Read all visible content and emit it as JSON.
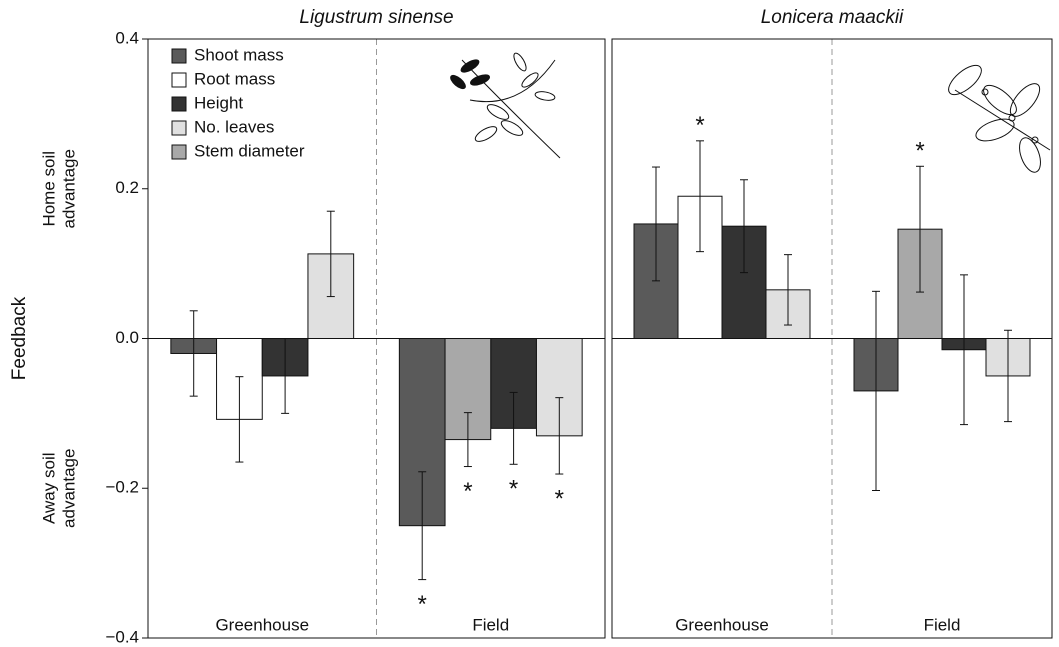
{
  "chart_data": [
    {
      "type": "bar",
      "title": "Ligustrum sinense",
      "ylabel": "Feedback",
      "y_annotations": [
        [
          "Home soil",
          "advantage"
        ],
        [
          "Away soil",
          "advantage"
        ]
      ],
      "categories": [
        "Greenhouse",
        "Field"
      ],
      "ylim": [
        -0.4,
        0.4
      ],
      "yticks": [
        {
          "value": -0.4,
          "label": "−0.4"
        },
        {
          "value": -0.2,
          "label": "−0.2"
        },
        {
          "value": 0,
          "label": "0.0"
        },
        0.2,
        0.4
      ],
      "legend": "upper left",
      "series": [
        {
          "name": "Shoot mass",
          "color": "#5a5a5a",
          "values": [
            -0.02,
            -0.25
          ],
          "errors": [
            0.057,
            0.072
          ],
          "stars": [
            null,
            "*"
          ]
        },
        {
          "name": "Root mass",
          "color": "#ffffff",
          "values": [
            -0.108,
            null
          ],
          "errors": [
            0.057,
            null
          ],
          "stars": [
            null,
            null
          ]
        },
        {
          "name": "Height",
          "color": "#333333",
          "values": [
            -0.05,
            -0.12
          ],
          "errors": [
            0.05,
            0.048
          ],
          "stars": [
            null,
            "*"
          ]
        },
        {
          "name": "No. leaves",
          "color": "#e0e0e0",
          "values": [
            0.113,
            -0.13
          ],
          "errors": [
            0.057,
            0.051
          ],
          "stars": [
            null,
            "*"
          ]
        },
        {
          "name": "Stem diameter",
          "color": "#a8a8a8",
          "values": [
            null,
            -0.135
          ],
          "errors": [
            null,
            0.036
          ],
          "stars": [
            null,
            "*"
          ]
        }
      ]
    },
    {
      "type": "bar",
      "title": "Lonicera maackii",
      "categories": [
        "Greenhouse",
        "Field"
      ],
      "ylim": [
        -0.4,
        0.4
      ],
      "series": [
        {
          "color": "#5a5a5a",
          "values": [
            0.153,
            -0.07
          ],
          "errors": [
            0.076,
            0.133
          ],
          "stars": [
            null,
            null
          ]
        },
        {
          "color": "#ffffff",
          "values": [
            0.19,
            null
          ],
          "errors": [
            0.074,
            null
          ],
          "stars": [
            "*",
            null
          ]
        },
        {
          "color": "#333333",
          "values": [
            0.15,
            -0.015
          ],
          "errors": [
            0.062,
            0.1
          ],
          "stars": [
            null,
            null
          ]
        },
        {
          "color": "#e0e0e0",
          "values": [
            0.065,
            -0.05
          ],
          "errors": [
            0.047,
            0.061
          ],
          "stars": [
            null,
            null
          ]
        },
        {
          "color": "#a8a8a8",
          "values": [
            null,
            0.146
          ],
          "errors": [
            null,
            0.084
          ],
          "stars": [
            null,
            "*"
          ]
        }
      ]
    }
  ]
}
